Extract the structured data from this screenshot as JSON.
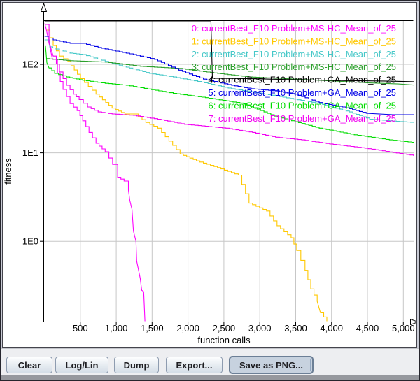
{
  "toolbar": {
    "buttons": [
      {
        "label": "Clear"
      },
      {
        "label": "Log/Lin"
      },
      {
        "label": "Dump"
      },
      {
        "label": "Export..."
      },
      {
        "label": "Save as PNG...",
        "focused": true
      }
    ]
  },
  "chart_data": {
    "type": "line",
    "title": "",
    "xlabel": "function calls",
    "ylabel": "fitness",
    "y_scale": "log",
    "xlim": [
      0,
      5200
    ],
    "ylim": [
      0.12,
      320
    ],
    "grid": true,
    "legend_position": "top-right",
    "x_ticks": {
      "values": [
        500,
        1000,
        1500,
        2000,
        2500,
        3000,
        3500,
        4000,
        4500,
        5000
      ],
      "labels": [
        "500",
        "1,000",
        "1,500",
        "2,000",
        "2,500",
        "3,000",
        "3,500",
        "4,000",
        "4,500",
        "5,000"
      ]
    },
    "y_ticks": {
      "values": [
        100,
        10,
        1
      ],
      "labels": [
        "1E2",
        "1E1",
        "1E0"
      ]
    },
    "series": [
      {
        "name": "0: currentBest_F10 Problem+MS-HC_Mean_of_25",
        "color": "#FF00FF",
        "points": [
          [
            5,
            290
          ],
          [
            30,
            240
          ],
          [
            64,
            173
          ],
          [
            112,
            114
          ],
          [
            181,
            79
          ],
          [
            259,
            52
          ],
          [
            357,
            36
          ],
          [
            455,
            30
          ],
          [
            533,
            23
          ],
          [
            621,
            17
          ],
          [
            719,
            12.8
          ],
          [
            846,
            10.3
          ],
          [
            950,
            7.4
          ],
          [
            1020,
            5.3
          ],
          [
            1110,
            4.8
          ],
          [
            1170,
            3.8
          ],
          [
            1190,
            2.9
          ],
          [
            1220,
            2.3
          ],
          [
            1240,
            1.3
          ],
          [
            1275,
            1.0
          ],
          [
            1285,
            0.6
          ],
          [
            1335,
            0.38
          ],
          [
            1355,
            0.28
          ],
          [
            1383,
            0.27
          ],
          [
            1400,
            0.125
          ]
        ]
      },
      {
        "name": "1: currentBest_F10 Problem+MS-HC_Mean_of_25",
        "color": "#FFC800",
        "points": [
          [
            34,
            244
          ],
          [
            122,
            163
          ],
          [
            210,
            124
          ],
          [
            327,
            108
          ],
          [
            503,
            69
          ],
          [
            719,
            46
          ],
          [
            943,
            32
          ],
          [
            1120,
            27.5
          ],
          [
            1256,
            27.5
          ],
          [
            1413,
            22
          ],
          [
            1579,
            19
          ],
          [
            1890,
            9.7
          ],
          [
            2117,
            8.1
          ],
          [
            2410,
            6.8
          ],
          [
            2700,
            5.6
          ],
          [
            2850,
            2.7
          ],
          [
            3094,
            2.2
          ],
          [
            3240,
            1.5
          ],
          [
            3436,
            1.1
          ],
          [
            3514,
            0.79
          ],
          [
            3630,
            0.47
          ],
          [
            3710,
            0.29
          ],
          [
            3800,
            0.21
          ],
          [
            3846,
            0.156
          ],
          [
            3934,
            0.125
          ]
        ]
      },
      {
        "name": "2: currentBest_F10 Problem+MS-HC_Mean_of_25",
        "color": "#46C8C8",
        "points": [
          [
            2,
            189
          ],
          [
            73,
            158
          ],
          [
            161,
            149
          ],
          [
            357,
            134
          ],
          [
            533,
            129
          ],
          [
            846,
            108
          ],
          [
            1139,
            93
          ],
          [
            1462,
            79
          ],
          [
            1794,
            72
          ],
          [
            2185,
            63
          ],
          [
            2606,
            53
          ],
          [
            2967,
            47.5
          ],
          [
            3221,
            44
          ],
          [
            3827,
            36
          ],
          [
            4248,
            29
          ],
          [
            4531,
            24
          ],
          [
            4805,
            23
          ],
          [
            5150,
            22
          ]
        ]
      },
      {
        "name": "3: currentBest_F10 Problem+MS-HC_Mean_of_25",
        "color": "#2DA02D",
        "points": [
          [
            25,
            116
          ],
          [
            357,
            110
          ],
          [
            846,
            106
          ],
          [
            1334,
            95
          ],
          [
            1872,
            90
          ],
          [
            2410,
            79
          ],
          [
            2850,
            72
          ],
          [
            3485,
            68
          ],
          [
            3974,
            65
          ],
          [
            4463,
            62
          ],
          [
            4930,
            60
          ],
          [
            5190,
            58
          ]
        ]
      },
      {
        "name": "4: currentBest_F10 Problem+GA_Mean_of_25",
        "color": "#000000",
        "points": [
          [
            2,
            303
          ],
          [
            2320,
            303
          ],
          [
            2340,
            69.5
          ],
          [
            2800,
            69
          ],
          [
            3500,
            67
          ],
          [
            4200,
            65.5
          ],
          [
            4800,
            64.5
          ],
          [
            5170,
            63.5
          ]
        ]
      },
      {
        "name": "5: currentBest_F10 Problem+GA_Mean_of_25",
        "color": "#0000E6",
        "points": [
          [
            2,
            207
          ],
          [
            122,
            189
          ],
          [
            357,
            173
          ],
          [
            533,
            173
          ],
          [
            748,
            155
          ],
          [
            943,
            144
          ],
          [
            1237,
            129
          ],
          [
            1530,
            114
          ],
          [
            1872,
            86
          ],
          [
            2214,
            68
          ],
          [
            2606,
            58
          ],
          [
            2879,
            53
          ],
          [
            3221,
            50
          ],
          [
            3485,
            46
          ],
          [
            3827,
            37
          ],
          [
            4150,
            33
          ],
          [
            4482,
            28
          ],
          [
            4854,
            27
          ],
          [
            5170,
            27
          ]
        ]
      },
      {
        "name": "6: currentBest_F10 Problem+GA_Mean_of_25",
        "color": "#00DC00",
        "points": [
          [
            15,
            161
          ],
          [
            34,
            104
          ],
          [
            64,
            91
          ],
          [
            142,
            79
          ],
          [
            308,
            72
          ],
          [
            533,
            66
          ],
          [
            846,
            61
          ],
          [
            1139,
            58
          ],
          [
            1794,
            47
          ],
          [
            2243,
            42
          ],
          [
            2771,
            36
          ],
          [
            3201,
            26
          ],
          [
            3827,
            19
          ],
          [
            4316,
            16
          ],
          [
            4805,
            14
          ],
          [
            5170,
            13
          ]
        ]
      },
      {
        "name": "7: currentBest_F10 Problem+GA_Mean_of_25",
        "color": "#F200F2",
        "points": [
          [
            5,
            282
          ],
          [
            64,
            179
          ],
          [
            122,
            124
          ],
          [
            210,
            82
          ],
          [
            308,
            58
          ],
          [
            406,
            46
          ],
          [
            484,
            40
          ],
          [
            601,
            33
          ],
          [
            748,
            29
          ],
          [
            943,
            27.5
          ],
          [
            1237,
            26.5
          ],
          [
            1579,
            24
          ],
          [
            1950,
            21
          ],
          [
            2527,
            19
          ],
          [
            2899,
            17
          ],
          [
            3221,
            15
          ],
          [
            3583,
            14
          ],
          [
            3974,
            12.6
          ],
          [
            4463,
            11.3
          ],
          [
            4854,
            10.1
          ],
          [
            5190,
            9.2
          ]
        ]
      }
    ]
  }
}
